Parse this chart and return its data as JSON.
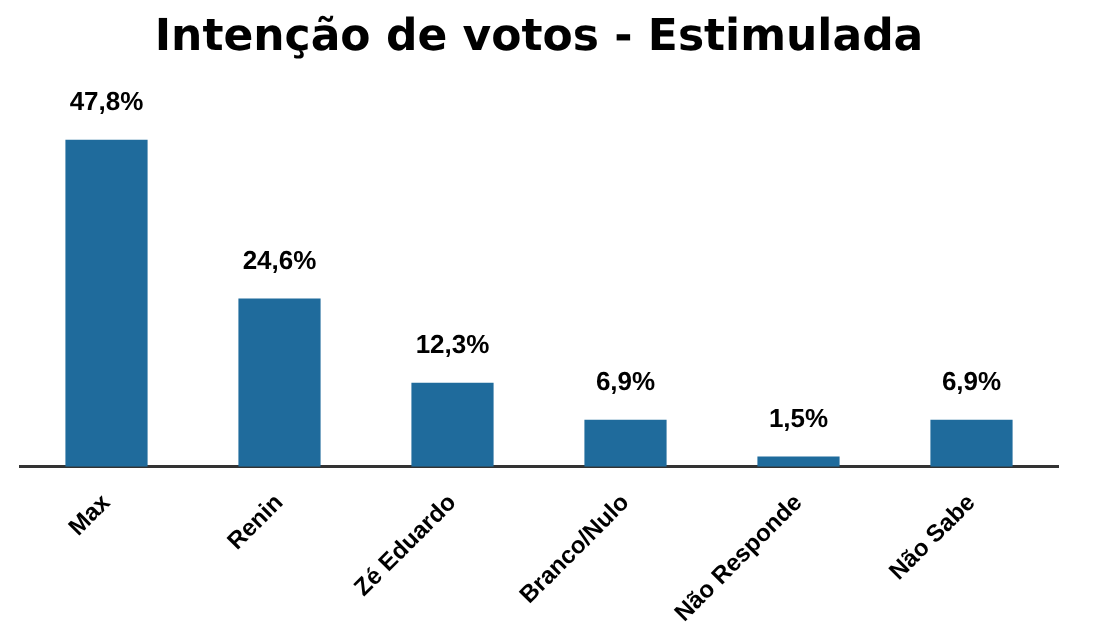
{
  "chart_data": {
    "type": "bar",
    "title": "Intenção de votos - Estimulada",
    "categories": [
      "Max",
      "Renin",
      "Zé Eduardo",
      "Branco/Nulo",
      "Não Responde",
      "Não Sabe"
    ],
    "values": [
      47.8,
      24.6,
      12.3,
      6.9,
      1.5,
      6.9
    ],
    "value_labels": [
      "47,8%",
      "24,6%",
      "12,3%",
      "6,9%",
      "1,5%",
      "6,9%"
    ],
    "color": "#1f6b9c",
    "grid": false,
    "legend": false
  }
}
